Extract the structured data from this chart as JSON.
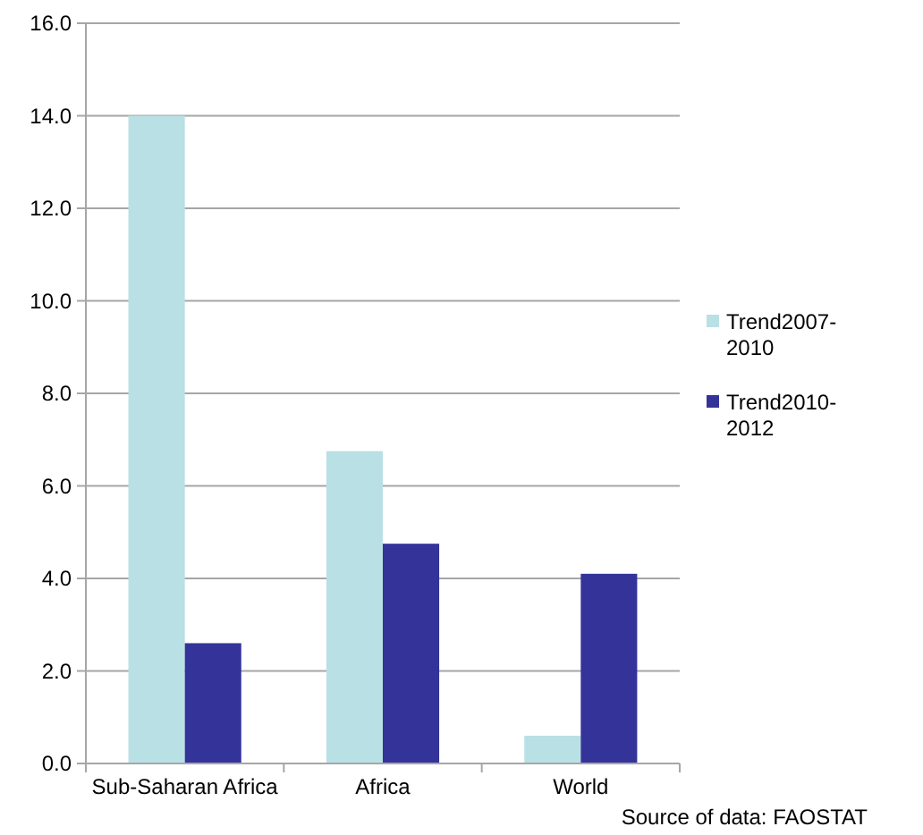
{
  "chart_data": {
    "type": "bar",
    "categories": [
      "Sub-Saharan Africa",
      "Africa",
      "World"
    ],
    "series": [
      {
        "name": "Trend2007-2010",
        "color": "#b9e0e4",
        "values": [
          14.0,
          6.75,
          0.6
        ]
      },
      {
        "name": "Trend2010-2012",
        "color": "#333399",
        "values": [
          2.6,
          4.75,
          4.1
        ]
      }
    ],
    "ylim": [
      0,
      16
    ],
    "yticks": [
      {
        "value": 0,
        "label": "0.0"
      },
      {
        "value": 2,
        "label": "2.0"
      },
      {
        "value": 4,
        "label": "4.0"
      },
      {
        "value": 6,
        "label": "6.0"
      },
      {
        "value": 8,
        "label": "8.0"
      },
      {
        "value": 10,
        "label": "10.0"
      },
      {
        "value": 12,
        "label": "12.0"
      },
      {
        "value": 14,
        "label": "14.0"
      },
      {
        "value": 16,
        "label": "16.0"
      }
    ],
    "grid": "y",
    "legend": "right",
    "annotations": [
      "Source  of data: FAOSTAT"
    ]
  }
}
